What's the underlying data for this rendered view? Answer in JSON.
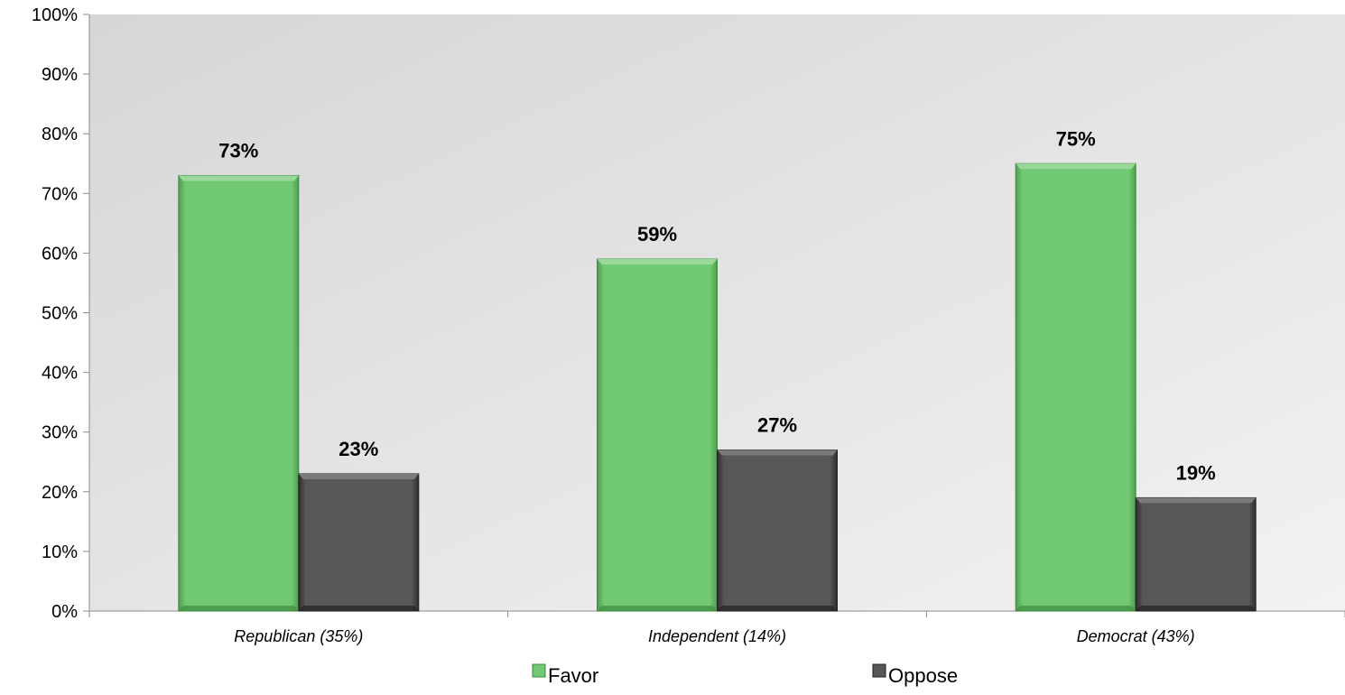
{
  "chart_data": {
    "type": "bar",
    "categories": [
      "Republican (35%)",
      "Independent (14%)",
      "Democrat (43%)"
    ],
    "series": [
      {
        "name": "Favor",
        "values": [
          73,
          59,
          75
        ],
        "labels": [
          "73%",
          "59%",
          "75%"
        ],
        "color": "#6ec66f"
      },
      {
        "name": "Oppose",
        "values": [
          23,
          27,
          19
        ],
        "labels": [
          "23%",
          "27%",
          "19%"
        ],
        "color": "#555555"
      }
    ],
    "ylim": [
      0,
      100
    ],
    "yticks": [
      0,
      10,
      20,
      30,
      40,
      50,
      60,
      70,
      80,
      90,
      100
    ],
    "ytick_labels": [
      "0%",
      "10%",
      "20%",
      "30%",
      "40%",
      "50%",
      "60%",
      "70%",
      "80%",
      "90%",
      "100%"
    ],
    "title": "",
    "xlabel": "",
    "ylabel": "",
    "grid": false,
    "legend_position": "bottom",
    "plot_background": "gradient-light-gray"
  }
}
